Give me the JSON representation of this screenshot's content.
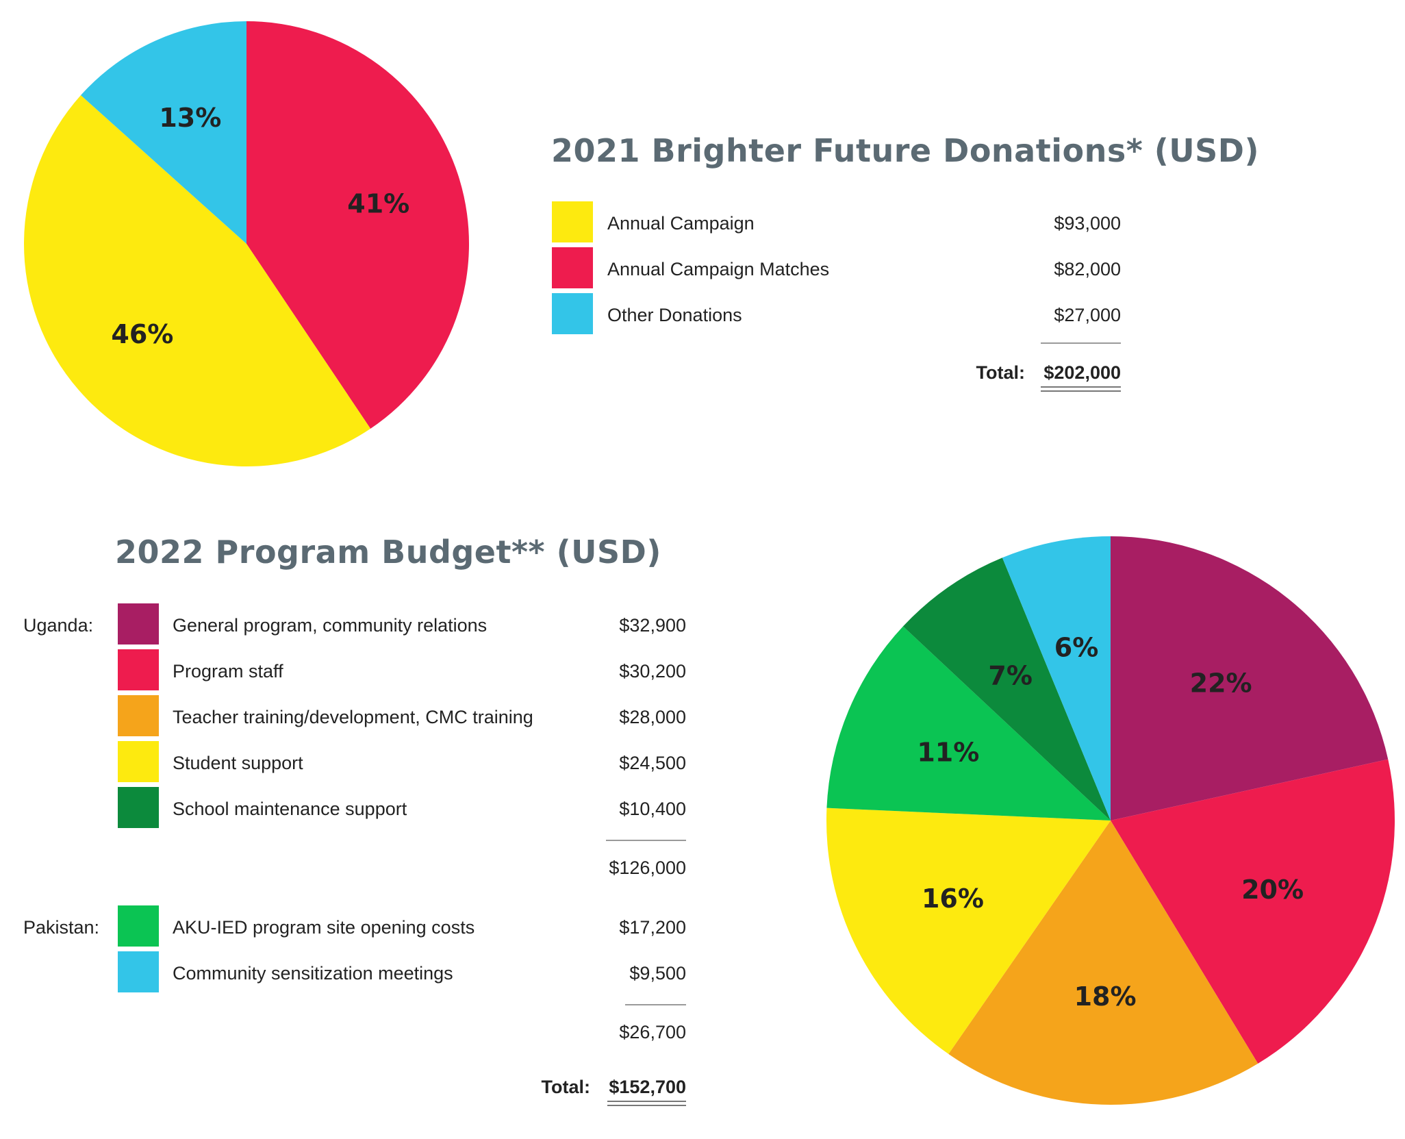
{
  "chart_data": [
    {
      "type": "pie",
      "title": "2021 Brighter Future Donations* (USD)",
      "slices": [
        {
          "label": "Annual Campaign",
          "amount": "$93,000",
          "value": 93000,
          "pct_label": "46%",
          "color": "#fdea0f"
        },
        {
          "label": "Annual Campaign Matches",
          "amount": "$82,000",
          "value": 82000,
          "pct_label": "41%",
          "color": "#ee1c4e"
        },
        {
          "label": "Other Donations",
          "amount": "$27,000",
          "value": 27000,
          "pct_label": "13%",
          "color": "#33c5e8"
        }
      ],
      "total_label": "Total:",
      "total": "$202,000"
    },
    {
      "type": "pie",
      "title": "2022 Program Budget** (USD)",
      "groups": [
        {
          "name": "Uganda:",
          "items": [
            {
              "label": "General program, community relations",
              "amount": "$32,900",
              "value": 32900,
              "pct_label": "22%",
              "color": "#a81e63"
            },
            {
              "label": "Program staff",
              "amount": "$30,200",
              "value": 30200,
              "pct_label": "20%",
              "color": "#ee1c4e"
            },
            {
              "label": "Teacher training/development, CMC training",
              "amount": "$28,000",
              "value": 28000,
              "pct_label": "18%",
              "color": "#f5a41b"
            },
            {
              "label": "Student support",
              "amount": "$24,500",
              "value": 24500,
              "pct_label": "16%",
              "color": "#fdea0f"
            },
            {
              "label": "School maintenance support",
              "amount": "$10,400",
              "value": 10400,
              "pct_label": "7%",
              "color": "#0c8a3c"
            }
          ],
          "subtotal": "$126,000"
        },
        {
          "name": "Pakistan:",
          "items": [
            {
              "label": "AKU-IED program site opening costs",
              "amount": "$17,200",
              "value": 17200,
              "pct_label": "11%",
              "color": "#0bc453"
            },
            {
              "label": "Community sensitization meetings",
              "amount": "$9,500",
              "value": 9500,
              "pct_label": "6%",
              "color": "#33c5e8"
            }
          ],
          "subtotal": "$26,700"
        }
      ],
      "total_label": "Total:",
      "total": "$152,700"
    }
  ]
}
